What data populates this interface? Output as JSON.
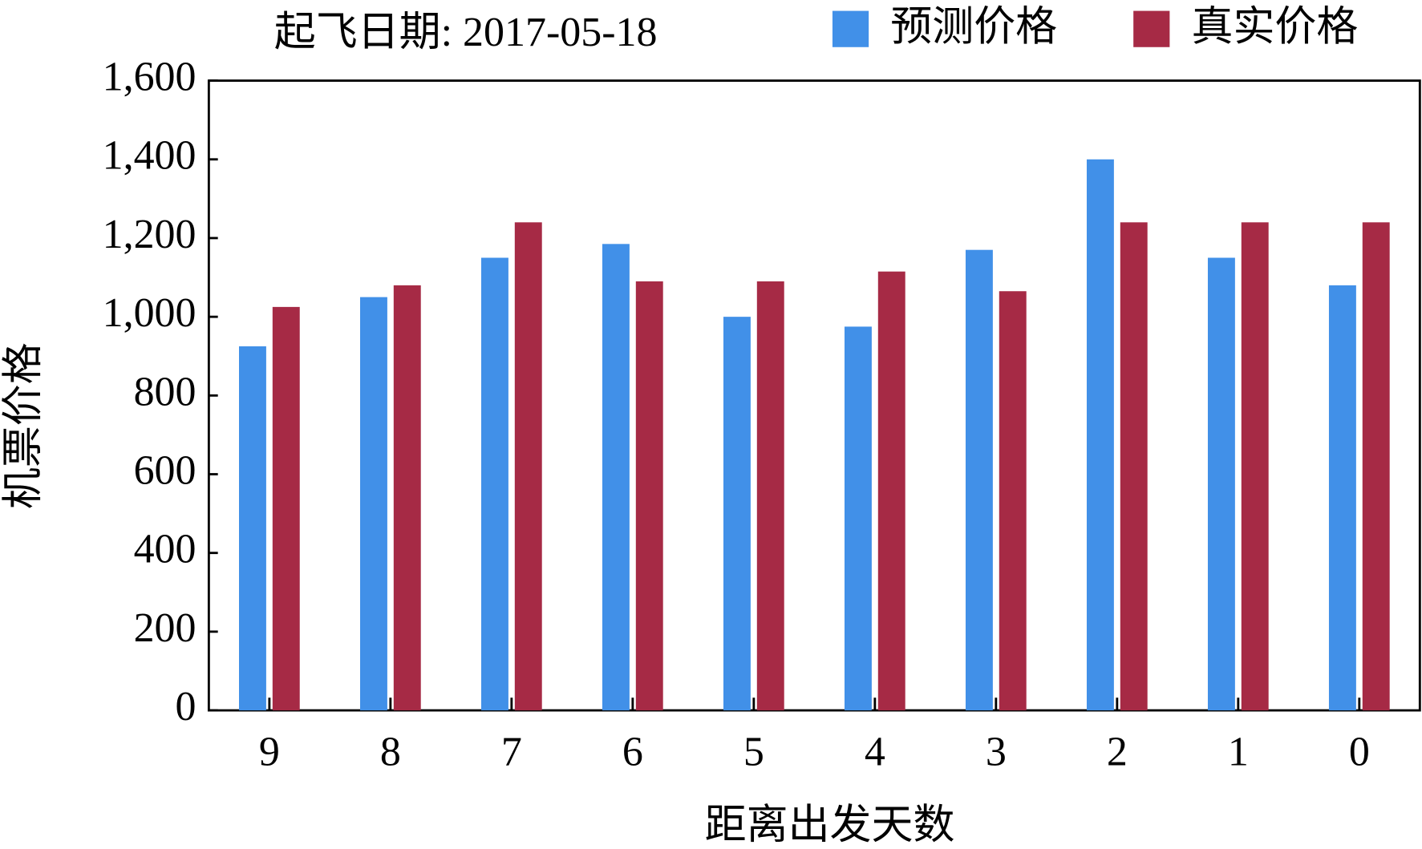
{
  "chart_data": {
    "type": "bar",
    "title": "起飞日期: 2017-05-18",
    "x_label": "距离出发天数",
    "y_label": "机票价格",
    "categories": [
      "9",
      "8",
      "7",
      "6",
      "5",
      "4",
      "3",
      "2",
      "1",
      "0"
    ],
    "series": [
      {
        "name": "预测价格",
        "color": "#4190e8",
        "values": [
          925,
          1050,
          1150,
          1185,
          1000,
          975,
          1170,
          1400,
          1150,
          1080
        ]
      },
      {
        "name": "真实价格",
        "color": "#a62a45",
        "values": [
          1025,
          1080,
          1240,
          1090,
          1090,
          1115,
          1065,
          1240,
          1240,
          1240
        ]
      }
    ],
    "ylim": [
      0,
      1600
    ],
    "yticks": [
      0,
      200,
      400,
      600,
      800,
      {
        "value": 1000,
        "label": "1,000"
      },
      {
        "value": 1200,
        "label": "1,200"
      },
      {
        "value": 1400,
        "label": "1,400"
      },
      {
        "value": 1600,
        "label": "1,600"
      }
    ]
  }
}
